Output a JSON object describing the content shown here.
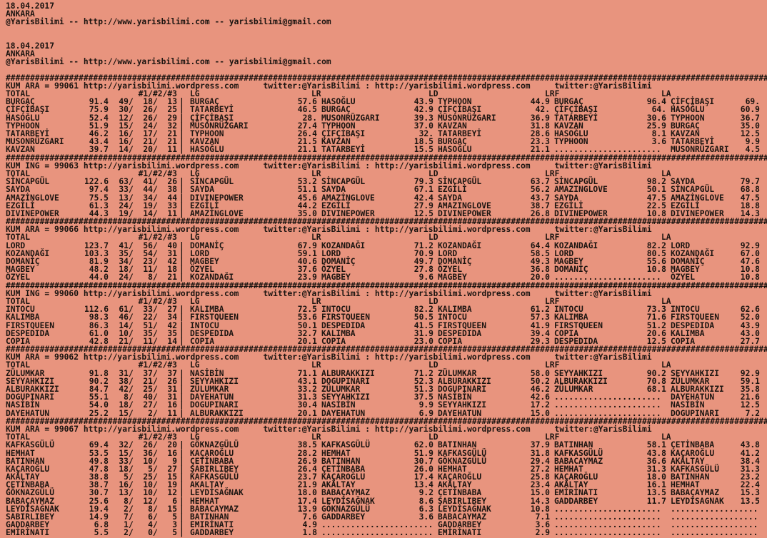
{
  "page": {
    "background": "#e8947e",
    "text_color": "#1b1410"
  },
  "separator": "################################################################################################################################################################",
  "top_blocks": [
    {
      "date": "18.04.2017",
      "city": "ANKARA",
      "contact": "@YarisBilimi -- http://www.yarisbilimi.com -- yarisbilimi@gmail.com"
    },
    {
      "date": "18.04.2017",
      "city": "ANKARA",
      "contact": "@YarisBilimi -- http://www.yarisbilimi.com -- yarisbilimi@gmail.com"
    }
  ],
  "columns": {
    "total": "TOTAL",
    "triplet": "#1/#2/#3",
    "lg": "LG",
    "lr": "LR",
    "ld": "LD",
    "lrf": "LRF",
    "la": "LA"
  },
  "pipe": "|",
  "blocks": [
    {
      "kum_line": "KUM ARA = 99061 http://yarisbilimi.wordpress.com     twitter:@YarisBilimi : http://yarisbilimi.wordpress.com     twitter:@YarisBilimi",
      "rows": [
        [
          "BURGAÇ",
          "91.4",
          " 49/  18/  13",
          "BURGAÇ",
          "57.6",
          "HASOĞLU",
          "43.9",
          "TYPHOON",
          "44.9",
          "BURGAÇ",
          "96.4",
          "ÇİFÇİBAŞI",
          "69."
        ],
        [
          "ÇİFÇİBAŞI",
          "75.9",
          " 30/  26/  25",
          "TATARBEYİ",
          "46.5",
          "BURGAÇ",
          "42.9",
          "ÇİFÇİBAŞI",
          "42.",
          "ÇİFÇİBAŞI",
          "64.",
          "HASOĞLU",
          "60.9"
        ],
        [
          "HASOĞLU",
          "52.4",
          " 12/  26/  29",
          "ÇİFÇİBAŞI",
          "28.",
          "MUSONRÜZGARI",
          "39.3",
          "MÜSONRÜZGARI",
          "36.9",
          "TATARBEYİ",
          "30.6",
          "TYPHOON",
          "36.7"
        ],
        [
          "TYPHOON",
          "51.9",
          " 15/  24/  32",
          "MÜSONRÜZGARI",
          "27.4",
          "TYPHOON",
          "37.0",
          "KAVZAN",
          "31.8",
          "KAVZAN",
          "25.9",
          "BURGAÇ",
          "35.0"
        ],
        [
          "TATARBEYİ",
          "46.2",
          " 16/  17/  21",
          "TYPHOON",
          "26.4",
          "ÇİFÇİBAŞI",
          "32.",
          "TATARBEYİ",
          "28.6",
          "HASOĞLU",
          "8.1",
          "KAVZAN",
          "12.5"
        ],
        [
          "MUSONRÜZGARI",
          "43.4",
          " 16/  21/  21",
          "KAVZAN",
          "21.5",
          "KAVZAN",
          "18.5",
          "BURGAÇ",
          "23.3",
          "TYPHOON",
          "3.6",
          "TATARBEYİ",
          "9.9"
        ],
        [
          "KAVZAN",
          "39.7",
          " 14/  20/  11",
          "HASOĞLU",
          "21.1",
          "TATARBEYİ",
          "15.5",
          "HASOĞLU",
          "21.1",
          "......................",
          "",
          "MUSONRÜZGARI",
          "4.5"
        ]
      ]
    },
    {
      "kum_line": "KUM ING = 99063 http://yarisbilimi.wordpress.com     twitter:@YarisBilimi : http://yarisbilimi.wordpress.com     twitter:@YarisBilimi",
      "rows": [
        [
          "SİNCAPGÜL",
          "122.6",
          " 63/  41/  26",
          "SİNCAPGÜL",
          "53.2",
          "SİNCAPGÜL",
          "79.3",
          "SİNCAPGÜL",
          "63.7",
          "SİNCAPGÜL",
          "98.2",
          "SAYDA",
          "79.7"
        ],
        [
          "SAYDA",
          "97.4",
          " 33/  44/  38",
          "SAYDA",
          "51.1",
          "SAYDA",
          "67.1",
          "EZGİLİ",
          "56.2",
          "AMAZINGLOVE",
          "50.1",
          "SİNCAPGÜL",
          "68.8"
        ],
        [
          "AMAZİNGLOVE",
          "75.5",
          " 13/  34/  44",
          "DIVINEPOWER",
          "45.6",
          "AMAZİNGLOVE",
          "42.4",
          "SAYDA",
          "43.7",
          "SAYDA",
          "47.5",
          "AMAZİNGLOVE",
          "47.5"
        ],
        [
          "EZGİLİ",
          "61.3",
          " 24/  19/  33",
          "EZGİLİ",
          "44.2",
          "EZGİLİ",
          "27.9",
          "AMAZINGLOVE",
          "38.7",
          "EZGİLİ",
          "22.5",
          "EZGİLİ",
          "18.8"
        ],
        [
          "DIVINEPOWER",
          "44.3",
          " 19/  14/  11",
          "AMAZİNGLOVE",
          "35.0",
          "DIVINEPOWER",
          "12.5",
          "DIVINEPOWER",
          "26.8",
          "DIVINEPOWER",
          "10.8",
          "DIVINEPOWER",
          "14.3"
        ]
      ]
    },
    {
      "kum_line": "KUM ARA = 99066 http://yarisbilimi.wordpress.com     twitter:@YarisBilimi : http://yarisbilimi.wordpress.com     twitter:@YarisBilimi",
      "rows": [
        [
          "LORD",
          "123.7",
          " 41/  56/  40",
          "DOMANİÇ",
          "67.9",
          "KOZANDAĞI",
          "71.2",
          "KOZANDAĞI",
          "64.4",
          "KOZANDAĞI",
          "82.2",
          "LORD",
          "92.9"
        ],
        [
          "KOZANDAĞI",
          "103.3",
          " 35/  54/  31",
          "LORD",
          "59.1",
          "LORD",
          "70.9",
          "LORD",
          "58.5",
          "LORD",
          "80.5",
          "KOZANDAĞI",
          "67.0"
        ],
        [
          "DOMANİÇ",
          "81.9",
          " 34/  23/  42",
          "MAGBEY",
          "40.6",
          "DOMANİÇ",
          "49.7",
          "DOMANİÇ",
          "49.3",
          "MAGBEY",
          "55.6",
          "DOMANİÇ",
          "47.6"
        ],
        [
          "MAGBEY",
          "48.2",
          " 18/  11/  18",
          "ÖZYEL",
          "37.6",
          "ÖZYEL",
          "27.8",
          "ÖZYEL",
          "36.8",
          "DOMANİÇ",
          "10.8",
          "MAGBEY",
          "10.8"
        ],
        [
          "ÖZYEL",
          "44.0",
          " 24/   8/  21",
          "KOZANDAĞI",
          "23.9",
          "MAGBEY",
          "9.6",
          "MAGBEY",
          "20.0",
          "......................",
          "",
          "ÖZYEL",
          "10.8"
        ]
      ]
    },
    {
      "kum_line": "KUM ING = 99060 http://yarisbilimi.wordpress.com     twitter:@YarisBilimi : http://yarisbilimi.wordpress.com     twitter:@YarisBilimi",
      "rows": [
        [
          "INTOCU",
          "112.6",
          " 61/  33/  27",
          "KALIMBA",
          "72.5",
          "INTOCU",
          "82.2",
          "KALIMBA",
          "61.2",
          "INTOCU",
          "73.3",
          "INTOCU",
          "62.6"
        ],
        [
          "KALIMBA",
          "98.3",
          " 46/  22/  34",
          "FIRSTQUEEN",
          "53.6",
          "FIRSTQUEEN",
          "50.5",
          "INTOCU",
          "57.3",
          "KALIMBA",
          "71.6",
          "FIRSTQUEEN",
          "52.0"
        ],
        [
          "FIRSTQUEEN",
          "86.3",
          " 14/  51/  42",
          "INTOCU",
          "50.1",
          "DESPEDIDA",
          "41.5",
          "FIRSTQUEEN",
          "41.9",
          "FIRSTQUEEN",
          "51.2",
          "DESPEDIDA",
          "43.9"
        ],
        [
          "DESPEDIDA",
          "61.0",
          " 10/  35/  35",
          "DESPEDIDA",
          "32.7",
          "KALIMBA",
          "31.9",
          "DESPEDIDA",
          "39.4",
          "COPIA",
          "20.6",
          "KALIMBA",
          "43.0"
        ],
        [
          "COPIA",
          "42.8",
          " 21/  11/  14",
          "COPIA",
          "20.1",
          "COPIA",
          "23.0",
          "COPIA",
          "29.3",
          "DESPEDIDA",
          "12.5",
          "COPIA",
          "27.7"
        ]
      ]
    },
    {
      "kum_line": "KUM ARA = 99062 http://yarisbilimi.wordpress.com     twitter:@YarisBilimi : http://yarisbilimi.wordpress.com     twitter:@YarisBilimi",
      "rows": [
        [
          "ZÜLUMKAR",
          "91.8",
          " 31/  37/  37",
          "NASİBİN",
          "71.1",
          "ALBURAKKIZI",
          "71.2",
          "ZÜLUMKAR",
          "58.0",
          "SEYYAHKIZI",
          "90.2",
          "SEYYAHKIZI",
          "92.9"
        ],
        [
          "SEYYAHKIZI",
          "90.2",
          " 38/  21/  26",
          "SEYYAHKIZI",
          "43.1",
          "DOGUPINARI",
          "52.3",
          "ALBURAKKIZI",
          "50.2",
          "ALBURAKKIZI",
          "70.8",
          "ZÜLUMKAR",
          "59.1"
        ],
        [
          "ALBURAKKIZI",
          "84.7",
          " 42/  25/  31",
          "ZÜLUMKAR",
          "33.2",
          "ZÜLUMKAR",
          "51.3",
          "DOGUPINARI",
          "46.2",
          "ZÜLUMKAR",
          "68.1",
          "ALBURAKKIZI",
          "35.8"
        ],
        [
          "DOGUPINARI",
          "55.1",
          "  8/  40/  31",
          "DAYEHATUN",
          "31.3",
          "SEYYAHKIZI",
          "37.5",
          "NASİBİN",
          "42.6",
          "......................",
          "",
          "DAYEHATUN",
          "21.6"
        ],
        [
          "NASİBİN",
          "54.0",
          " 18/  27/  16",
          "DOGUPINARI",
          "30.4",
          "NASİBİN",
          "9.9",
          "SEYYAHKIZI",
          "17.2",
          "......................",
          "",
          "NASİBİN",
          "12.5"
        ],
        [
          "DAYEHATUN",
          "25.2",
          " 15/   2/  11",
          "ALBURAKKIZI",
          "20.1",
          "DAYEHATUN",
          "6.9",
          "DAYEHATUN",
          "15.0",
          "......................",
          "",
          "DOGUPINARI",
          "7.2"
        ]
      ]
    },
    {
      "kum_line": "KUM ARA = 99067 http://yarisbilimi.wordpress.com     twitter:@YarisBilimi : http://yarisbilimi.wordpress.com     twitter:@YarisBilimi",
      "rows": [
        [
          "KAFKASGÜLÜ",
          "69.4",
          " 32/  26/  20",
          "GÖKNAZGÜLÜ",
          "38.5",
          "KAFKASGÜLÜ",
          "62.0",
          "BATINHAN",
          "37.9",
          "BATINHAN",
          "58.1",
          "ÇETİNBABA",
          "43.8"
        ],
        [
          "HEMHAT",
          "53.5",
          " 15/  36/  16",
          "KAÇAROĞLU",
          "28.2",
          "HEMHAT",
          "51.9",
          "KAFKASGÜLÜ",
          "31.8",
          "KAFKASGÜLÜ",
          "43.8",
          "KAÇAROĞLU",
          "41.2"
        ],
        [
          "BATINHAN",
          "49.8",
          " 33/  10/   9",
          "ÇETİNBABA",
          "26.9",
          "BATINHAN",
          "30.7",
          "GÖKNAZGÜLÜ",
          "29.4",
          "BABACAYMAZ",
          "36.6",
          "AKÂLTAY",
          "38.4"
        ],
        [
          "KAÇAROĞLU",
          "47.8",
          " 18/   5/  27",
          "ŞABIRLIBEY",
          "26.4",
          "ÇETİNBABA",
          "26.0",
          "HEMHAT",
          "27.2",
          "HEMHAT",
          "31.3",
          "KAFKASGÜLÜ",
          "31.3"
        ],
        [
          "AKÂLTAY",
          "38.8",
          "  5/  25/  15",
          "KAFKASGÜLÜ",
          "23.7",
          "KAÇAROĞLU",
          "17.4",
          "KAÇAROĞLU",
          "25.8",
          "KAÇAROĞLU",
          "18.0",
          "BATINHAN",
          "23.2"
        ],
        [
          "ÇETİNBABA",
          "38.7",
          " 16/  10/  19",
          "AKALTAY",
          "21.9",
          "AKÂLTAY",
          "13.4",
          "AKÂLTAY",
          "23.4",
          "AKÂLTAY",
          "16.1",
          "HEMHAT",
          "22.4"
        ],
        [
          "GÖKNAZGÜLÜ",
          "30.7",
          " 13/  10/  12",
          "LEYDİSAĞNAK",
          "18.0",
          "BABAÇAYMAZ",
          "9.2",
          "ÇETİNBABA",
          "15.0",
          "EMİRİNATI",
          "13.5",
          "BABAÇAYMAZ",
          "15.3"
        ],
        [
          "BABAÇAYMAZ",
          "25.6",
          "  8/  12/   6",
          "HEMHAT",
          "17.4",
          "LEYDİSAĞNAK",
          "8.6",
          "ŞABIRLIBEY",
          "14.3",
          "GADDARBEY",
          "11.7",
          "LEYDİSAGNAK",
          "13.5"
        ],
        [
          "LEYDİSAĞNAK",
          "19.4",
          "  2/   8/  15",
          "BABACAYMAZ",
          "13.9",
          "GÖKNAZGÜLÜ",
          "6.3",
          "LEYDİSAĞNAK",
          "10.8",
          "......................",
          "",
          "..................",
          ""
        ],
        [
          "SABIRLIBEY",
          "14.9",
          "  7/   6/   5",
          "BATINHAN",
          "7.6",
          "GADDARBEY",
          "3.6",
          "BABACAYMAZ",
          "7.1",
          "......................",
          "",
          "..................",
          ""
        ],
        [
          "GADDARBEY",
          "6.8",
          "  1/   4/   3",
          "EMIRİNATI",
          "4.9",
          ".......................",
          "",
          "GADDARBEY",
          "3.6",
          "......................",
          "",
          "..................",
          ""
        ],
        [
          "EMİRİNATI",
          "5.5",
          "  2/   0/   5",
          "GADDARBEY",
          "1.8",
          ".......................",
          "",
          "EMİRİNATI",
          "2.9",
          "......................",
          "",
          "..................",
          ""
        ]
      ]
    }
  ]
}
